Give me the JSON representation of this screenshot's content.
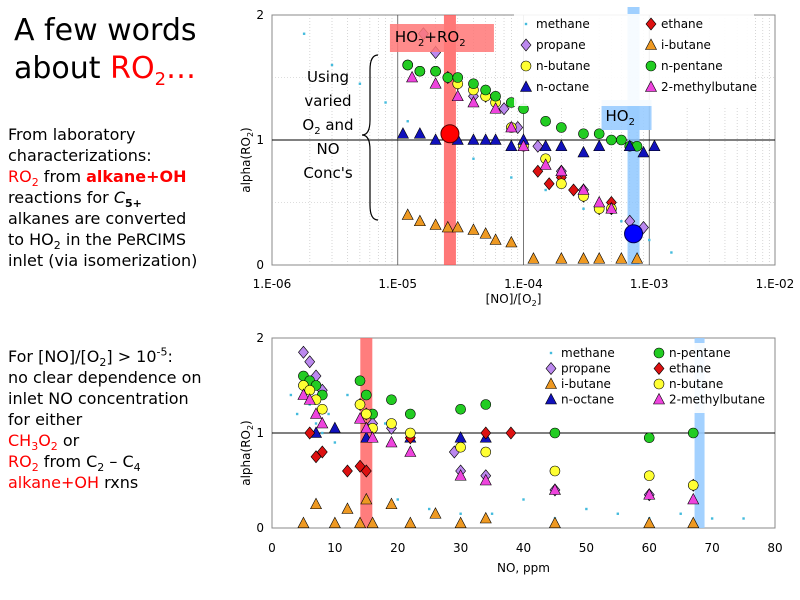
{
  "slide": {
    "title_part1": "A few words",
    "title_part2": "about ",
    "title_ro": "RO",
    "title_ro_sub": "2",
    "title_ellipsis": "…",
    "para1": {
      "line1": "From laboratory",
      "line2": "characterizations:",
      "ro": "RO",
      "ro_sub": "2",
      "from": " from ",
      "alkane_oh": "alkane+OH",
      "reactions_for": "reactions for ",
      "c": "C",
      "c_sub": "5+",
      "line5": "alkanes are converted",
      "line6": "to HO",
      "line6_sub": "2",
      "line6_tail": " in the PeRCIMS",
      "line7": "inlet (via isomerization)"
    },
    "para2": {
      "line1_a": "For [NO]/[O",
      "line1_sub": "2",
      "line1_b": "] > 10",
      "line1_sup": "-5",
      "line1_c": ":",
      "line2": "no clear dependence on",
      "line3": "inlet NO concentration",
      "line4": "for either",
      "ch3o2_a": "CH",
      "ch3o2_s1": "3",
      "ch3o2_b": "O",
      "ch3o2_s2": "2",
      "ch3o2_c": " or",
      "ro_a": "RO",
      "ro_s": "2",
      "ro_from": " from C",
      "ro_c2": "2",
      "ro_dash": " – C",
      "ro_c4": "4",
      "line7_a": "alkane+OH",
      "line7_b": " rxns"
    }
  },
  "chart_data": [
    {
      "type": "scatter",
      "xscale": "log",
      "xlabel": "[NO]/[O2]",
      "ylabel": "alpha(RO2)",
      "xlim": [
        1e-06,
        0.01
      ],
      "ylim": [
        0,
        2
      ],
      "xticks": [
        "1.E-06",
        "1.E-05",
        "1.E-04",
        "1.E-03",
        "1.E-02"
      ],
      "yticks": [
        "0",
        "1",
        "2"
      ],
      "annotations": {
        "band_red_label": "HO2+RO2",
        "band_blue_label": "HO2",
        "using_text": [
          "Using",
          "varied",
          "O2 and",
          "NO",
          "Conc's"
        ]
      },
      "highlights": [
        {
          "name": "HO2+RO2",
          "x": 2.6e-05,
          "y": 1.05,
          "color": "#ff0000"
        },
        {
          "name": "HO2",
          "x": 0.00075,
          "y": 0.25,
          "color": "#0000ff"
        }
      ],
      "series": [
        {
          "name": "methane",
          "x": [
            1.8e-06,
            3e-06,
            5e-06,
            8e-06,
            1.2e-05,
            2e-05,
            4e-05,
            8e-05,
            0.00015,
            0.0003,
            0.0006,
            0.001,
            0.0015
          ],
          "y": [
            1.85,
            1.6,
            1.45,
            1.3,
            1.15,
            1.0,
            0.85,
            0.7,
            0.6,
            0.45,
            0.35,
            0.2,
            0.1
          ]
        },
        {
          "name": "ethane",
          "x": [
            0.00013,
            0.00016,
            0.0002,
            0.00025,
            0.0003,
            0.0004,
            0.0005
          ],
          "y": [
            0.75,
            0.65,
            0.7,
            0.6,
            0.55,
            0.45,
            0.5
          ]
        },
        {
          "name": "propane",
          "x": [
            1.6e-05,
            2e-05,
            2.5e-05,
            3e-05,
            4e-05,
            5e-05,
            7e-05,
            9e-05,
            0.00013,
            0.0002,
            0.0003,
            0.0005,
            0.0007,
            0.0009
          ],
          "y": [
            1.85,
            1.7,
            1.5,
            1.45,
            1.35,
            1.35,
            1.25,
            1.1,
            0.95,
            0.75,
            0.6,
            0.45,
            0.35,
            0.3
          ]
        },
        {
          "name": "i-butane",
          "x": [
            1.2e-05,
            1.5e-05,
            2e-05,
            2.5e-05,
            3e-05,
            4e-05,
            5e-05,
            6e-05,
            8e-05,
            0.00012,
            0.0002,
            0.0003,
            0.0004,
            0.0006,
            0.0008
          ],
          "y": [
            0.4,
            0.35,
            0.32,
            0.3,
            0.3,
            0.28,
            0.25,
            0.2,
            0.18,
            0.05,
            0.05,
            0.05,
            0.05,
            0.05,
            0.05
          ]
        },
        {
          "name": "n-butane",
          "x": [
            1.2e-05,
            1.5e-05,
            2e-05,
            3e-05,
            4e-05,
            5e-05,
            6e-05,
            8e-05,
            0.0001,
            0.00015,
            0.0002,
            0.0003,
            0.0004,
            0.0005
          ],
          "y": [
            1.6,
            1.55,
            1.55,
            1.45,
            1.4,
            1.35,
            1.3,
            1.1,
            0.95,
            0.85,
            0.65,
            0.55,
            0.45,
            0.45
          ]
        },
        {
          "name": "n-pentane",
          "x": [
            1.2e-05,
            1.5e-05,
            2e-05,
            2.5e-05,
            3e-05,
            4e-05,
            5e-05,
            6e-05,
            8e-05,
            0.0001,
            0.00015,
            0.0002,
            0.0003,
            0.0004,
            0.0005,
            0.0006,
            0.0007,
            0.0008
          ],
          "y": [
            1.6,
            1.55,
            1.55,
            1.5,
            1.5,
            1.45,
            1.4,
            1.35,
            1.3,
            1.25,
            1.15,
            1.1,
            1.05,
            1.05,
            1.0,
            1.0,
            0.95,
            0.95
          ]
        },
        {
          "name": "n-octane",
          "x": [
            1.1e-05,
            1.5e-05,
            2e-05,
            2.5e-05,
            3e-05,
            4e-05,
            5e-05,
            6e-05,
            8e-05,
            0.0001,
            0.00015,
            0.0002,
            0.0003,
            0.0004,
            0.0007,
            0.0009,
            0.0011
          ],
          "y": [
            1.05,
            1.05,
            1.0,
            1.05,
            1.0,
            1.0,
            1.0,
            1.0,
            0.95,
            1.0,
            0.95,
            0.95,
            0.9,
            0.95,
            0.95,
            0.9,
            0.95
          ]
        },
        {
          "name": "2-methylbutane",
          "x": [
            1.3e-05,
            2e-05,
            3e-05,
            4e-05,
            6e-05,
            8e-05,
            0.0001,
            0.00015,
            0.0002,
            0.0003,
            0.0004,
            0.0005
          ],
          "y": [
            1.5,
            1.45,
            1.35,
            1.3,
            1.25,
            1.1,
            0.95,
            0.8,
            0.75,
            0.6,
            0.5,
            0.45
          ]
        }
      ]
    },
    {
      "type": "scatter",
      "xlabel": "NO, ppm",
      "ylabel": "alpha(RO2)",
      "xlim": [
        0,
        80
      ],
      "ylim": [
        0,
        2
      ],
      "xticks": [
        "0",
        "10",
        "20",
        "30",
        "40",
        "50",
        "60",
        "70",
        "80"
      ],
      "yticks": [
        "0",
        "1",
        "2"
      ],
      "bands": [
        {
          "x": 15,
          "color": "#ff6666"
        },
        {
          "x": 68,
          "color": "#99ccff"
        }
      ],
      "series": [
        {
          "name": "methane",
          "x": [
            3,
            4,
            5,
            6,
            7,
            8,
            9,
            10,
            12,
            14,
            16,
            18,
            20,
            25,
            30,
            35,
            40,
            45,
            50,
            55,
            60,
            65,
            70,
            75
          ],
          "y": [
            1.4,
            1.2,
            1.5,
            1.3,
            1.1,
            1.0,
            1.2,
            0.9,
            1.4,
            1.3,
            1.2,
            1.1,
            0.3,
            0.2,
            0.15,
            0.15,
            0.3,
            0.1,
            0.2,
            0.15,
            0.1,
            0.15,
            0.1,
            0.1
          ]
        },
        {
          "name": "propane",
          "x": [
            5,
            6,
            7,
            8,
            14,
            15,
            16,
            19,
            22,
            29,
            30,
            34,
            45,
            60,
            67
          ],
          "y": [
            1.85,
            1.75,
            1.6,
            1.45,
            1.3,
            1.2,
            1.1,
            1.05,
            0.95,
            0.8,
            0.6,
            0.55,
            0.4,
            0.35,
            0.45
          ]
        },
        {
          "name": "i-butane",
          "x": [
            5,
            7,
            10,
            12,
            14,
            15,
            16,
            19,
            22,
            26,
            30,
            34,
            45,
            60,
            67
          ],
          "y": [
            0.05,
            0.25,
            0.05,
            0.2,
            0.05,
            0.3,
            0.05,
            0.25,
            0.05,
            0.15,
            0.05,
            0.1,
            0.05,
            0.05,
            0.05
          ]
        },
        {
          "name": "n-octane",
          "x": [
            7,
            10,
            15,
            22,
            30,
            34
          ],
          "y": [
            1.0,
            1.05,
            0.95,
            0.95,
            0.95,
            0.95
          ]
        },
        {
          "name": "n-pentane",
          "x": [
            5,
            6,
            7,
            8,
            14,
            15,
            16,
            19,
            22,
            30,
            34,
            45,
            60,
            67
          ],
          "y": [
            1.6,
            1.55,
            1.5,
            1.4,
            1.55,
            1.4,
            1.2,
            1.35,
            1.2,
            1.25,
            1.3,
            1.0,
            0.95,
            1.0
          ]
        },
        {
          "name": "ethane",
          "x": [
            6,
            7,
            8,
            12,
            14,
            15,
            22,
            34,
            38
          ],
          "y": [
            1.0,
            0.75,
            0.8,
            0.6,
            0.65,
            0.6,
            0.95,
            1.0,
            1.0
          ]
        },
        {
          "name": "n-butane",
          "x": [
            5,
            6,
            7,
            8,
            14,
            15,
            16,
            19,
            22,
            30,
            34,
            45,
            60,
            67
          ],
          "y": [
            1.5,
            1.45,
            1.35,
            1.25,
            1.3,
            1.2,
            1.05,
            1.1,
            1.0,
            0.85,
            0.8,
            0.6,
            0.55,
            0.45
          ]
        },
        {
          "name": "2-methylbutane",
          "x": [
            5,
            6,
            7,
            8,
            14,
            15,
            16,
            19,
            22,
            30,
            34,
            45,
            60,
            67
          ],
          "y": [
            1.4,
            1.35,
            1.2,
            1.1,
            1.15,
            1.05,
            0.95,
            0.9,
            0.8,
            0.55,
            0.5,
            0.4,
            0.35,
            0.3
          ]
        }
      ]
    }
  ]
}
